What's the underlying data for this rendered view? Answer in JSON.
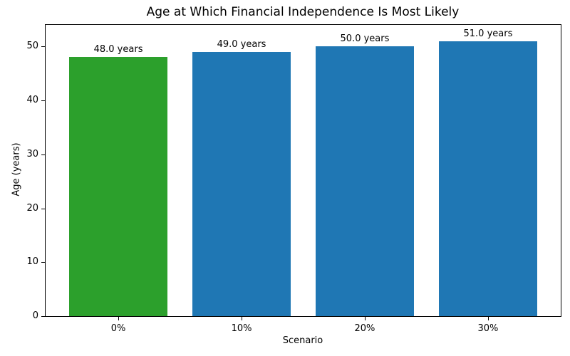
{
  "chart_data": {
    "type": "bar",
    "title": "Age at Which Financial Independence Is Most Likely",
    "xlabel": "Scenario",
    "ylabel": "Age (years)",
    "categories": [
      "0%",
      "10%",
      "20%",
      "30%"
    ],
    "values": [
      48.0,
      49.0,
      50.0,
      51.0
    ],
    "bar_labels": [
      "48.0 years",
      "49.0 years",
      "50.0 years",
      "51.0 years"
    ],
    "bar_colors": [
      "#2ca02c",
      "#1f77b4",
      "#1f77b4",
      "#1f77b4"
    ],
    "ylim": [
      0,
      54
    ],
    "yticks": [
      0,
      10,
      20,
      30,
      40,
      50
    ],
    "grid": false,
    "legend": null,
    "axis_color": "#000000",
    "background_color": "#ffffff"
  }
}
